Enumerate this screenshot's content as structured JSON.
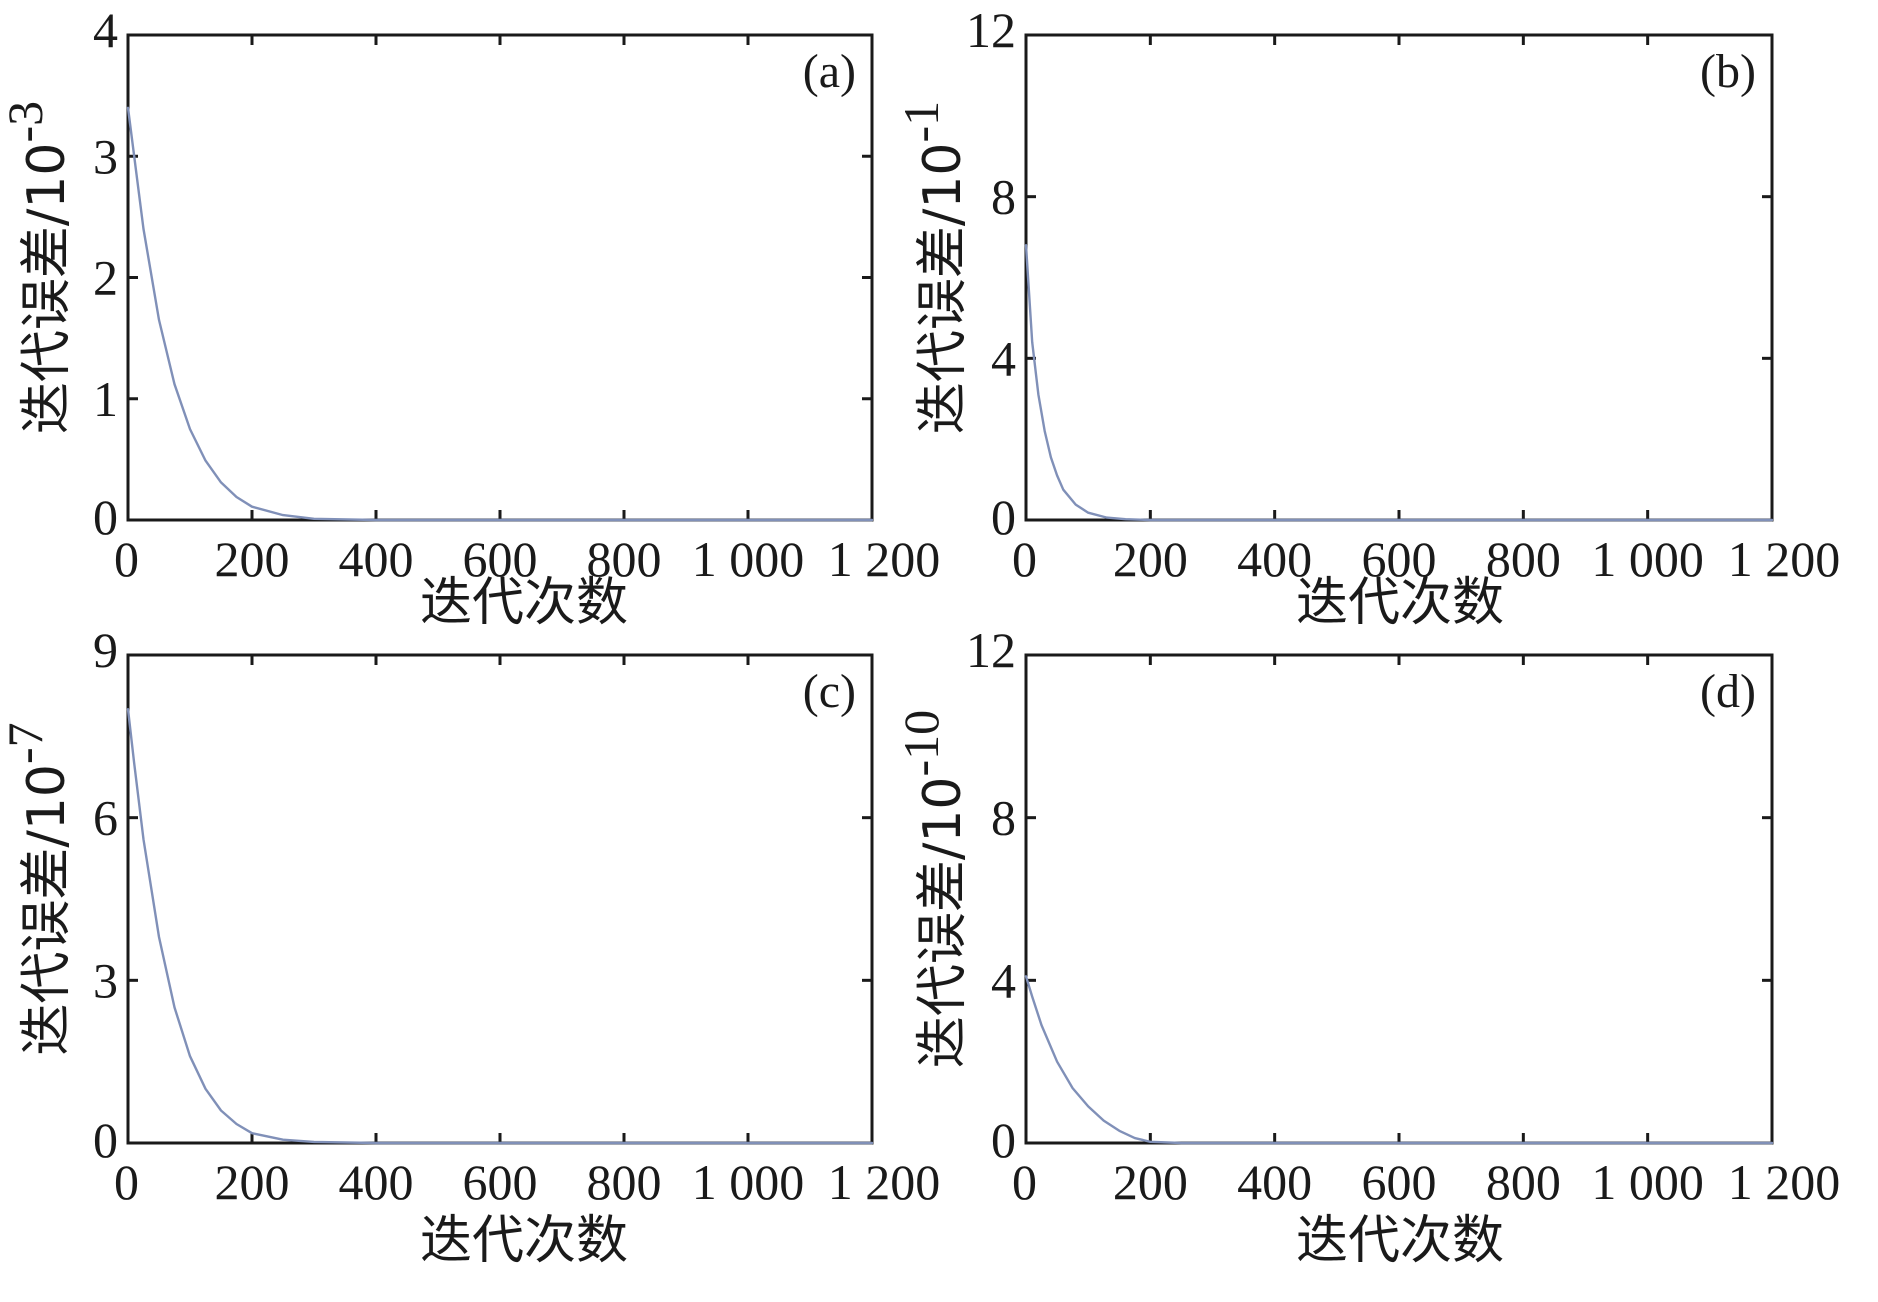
{
  "chart_data": [
    {
      "type": "line",
      "panel_label": "(a)",
      "xlabel": "迭代次数",
      "ylabel": "迭代误差/10",
      "ylabel_exponent": "-3",
      "xlim": [
        0,
        1200
      ],
      "ylim": [
        0,
        4
      ],
      "xticks": [
        0,
        200,
        400,
        600,
        800,
        1000,
        1200
      ],
      "xtick_labels": [
        "0",
        "200",
        "400",
        "600",
        "800",
        "1 000",
        "1 200"
      ],
      "yticks": [
        0,
        1,
        2,
        3,
        4
      ],
      "ytick_labels": [
        "0",
        "1",
        "2",
        "3",
        "4"
      ],
      "grid": false,
      "color": "#8090b8",
      "series": [
        {
          "x": [
            0,
            10,
            25,
            50,
            75,
            100,
            125,
            150,
            175,
            200,
            250,
            300,
            400,
            600,
            800,
            1000,
            1200
          ],
          "y": [
            3.4,
            3.0,
            2.4,
            1.65,
            1.12,
            0.75,
            0.49,
            0.31,
            0.19,
            0.11,
            0.04,
            0.01,
            0,
            0,
            0,
            0,
            0
          ]
        }
      ]
    },
    {
      "type": "line",
      "panel_label": "(b)",
      "xlabel": "迭代次数",
      "ylabel": "迭代误差/10",
      "ylabel_exponent": "-1",
      "xlim": [
        0,
        1200
      ],
      "ylim": [
        0,
        12
      ],
      "xticks": [
        0,
        200,
        400,
        600,
        800,
        1000,
        1200
      ],
      "xtick_labels": [
        "0",
        "200",
        "400",
        "600",
        "800",
        "1 000",
        "1 200"
      ],
      "yticks": [
        0,
        4,
        8,
        12
      ],
      "ytick_labels": [
        "0",
        "4",
        "8",
        "12"
      ],
      "grid": false,
      "color": "#8090b8",
      "series": [
        {
          "x": [
            0,
            5,
            10,
            20,
            30,
            40,
            50,
            60,
            80,
            100,
            130,
            160,
            200,
            400,
            600,
            800,
            1000,
            1200
          ],
          "y": [
            6.8,
            5.6,
            4.4,
            3.1,
            2.2,
            1.55,
            1.1,
            0.75,
            0.38,
            0.18,
            0.06,
            0.02,
            0,
            0,
            0,
            0,
            0,
            0
          ]
        }
      ]
    },
    {
      "type": "line",
      "panel_label": "(c)",
      "xlabel": "迭代次数",
      "ylabel": "迭代误差/10",
      "ylabel_exponent": "-7",
      "xlim": [
        0,
        1200
      ],
      "ylim": [
        0,
        9
      ],
      "xticks": [
        0,
        200,
        400,
        600,
        800,
        1000,
        1200
      ],
      "xtick_labels": [
        "0",
        "200",
        "400",
        "600",
        "800",
        "1 000",
        "1 200"
      ],
      "yticks": [
        0,
        3,
        6,
        9
      ],
      "ytick_labels": [
        "0",
        "3",
        "6",
        "9"
      ],
      "grid": false,
      "color": "#8090b8",
      "series": [
        {
          "x": [
            0,
            10,
            25,
            50,
            75,
            100,
            125,
            150,
            175,
            200,
            250,
            300,
            400,
            600,
            800,
            1000,
            1200
          ],
          "y": [
            8.0,
            7.0,
            5.6,
            3.8,
            2.5,
            1.6,
            1.0,
            0.6,
            0.35,
            0.18,
            0.06,
            0.02,
            0,
            0,
            0,
            0,
            0
          ]
        }
      ]
    },
    {
      "type": "line",
      "panel_label": "(d)",
      "xlabel": "迭代次数",
      "ylabel": "迭代误差/10",
      "ylabel_exponent": "-10",
      "xlim": [
        0,
        1200
      ],
      "ylim": [
        0,
        12
      ],
      "xticks": [
        0,
        200,
        400,
        600,
        800,
        1000,
        1200
      ],
      "xtick_labels": [
        "0",
        "200",
        "400",
        "600",
        "800",
        "1 000",
        "1 200"
      ],
      "yticks": [
        0,
        4,
        8,
        12
      ],
      "ytick_labels": [
        "0",
        "4",
        "8",
        "12"
      ],
      "grid": false,
      "color": "#8090b8",
      "series": [
        {
          "x": [
            0,
            10,
            25,
            50,
            75,
            100,
            125,
            150,
            175,
            200,
            250,
            400,
            600,
            800,
            1000,
            1200
          ],
          "y": [
            4.1,
            3.6,
            2.9,
            2.0,
            1.35,
            0.9,
            0.55,
            0.3,
            0.12,
            0.03,
            0,
            0,
            0,
            0,
            0,
            0
          ]
        }
      ]
    }
  ]
}
